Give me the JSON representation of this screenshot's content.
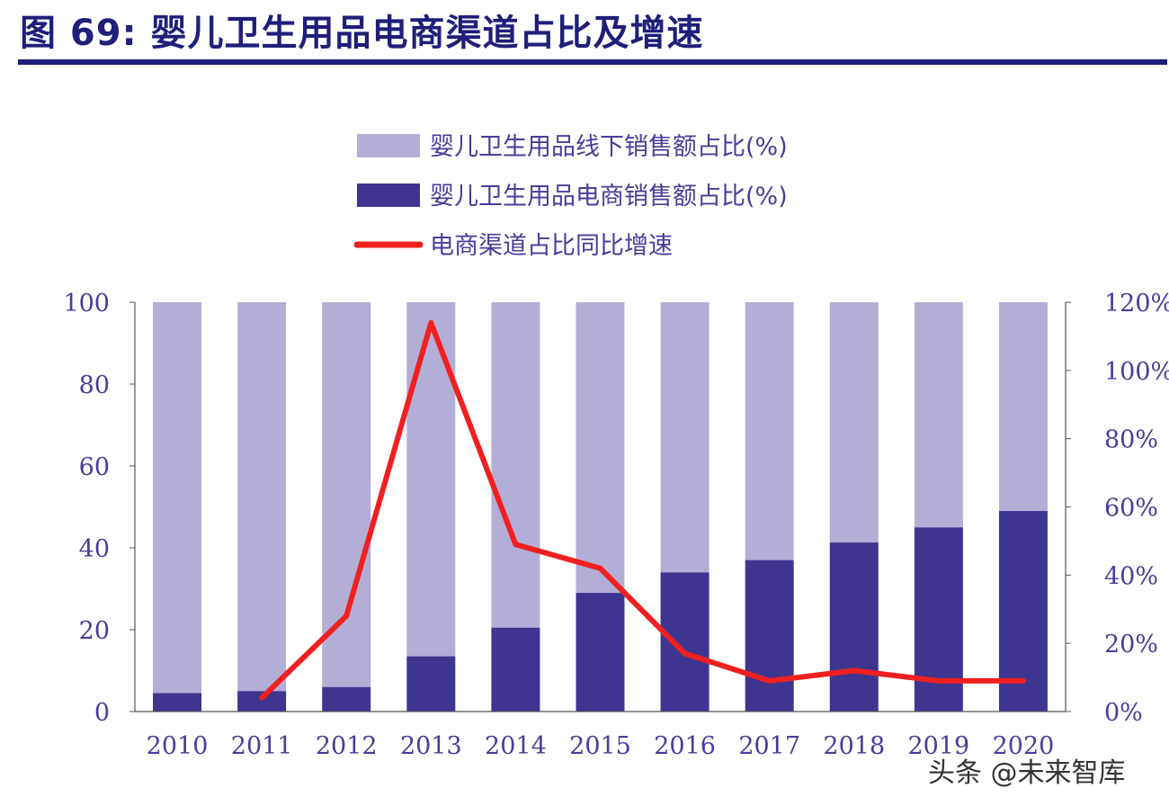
{
  "figure": {
    "title": "图 69: 婴儿卫生用品电商渠道占比及增速"
  },
  "watermark": "头条 @未来智库",
  "colors": {
    "offline": "#b3aed6",
    "online": "#3e3591",
    "growth": "#f02020",
    "text": "#4b3b9b",
    "title": "#1f1e7a"
  },
  "chart_data": {
    "type": "bar",
    "stacked": true,
    "categories": [
      "2010",
      "2011",
      "2012",
      "2013",
      "2014",
      "2015",
      "2016",
      "2017",
      "2018",
      "2019",
      "2020"
    ],
    "series": [
      {
        "name": "婴儿卫生用品线下销售额占比(%)",
        "kind": "bar",
        "axis": "left",
        "values": [
          95.5,
          95,
          94,
          86.5,
          79.5,
          71,
          66,
          63,
          58.7,
          55,
          51
        ]
      },
      {
        "name": "婴儿卫生用品电商销售额占比(%)",
        "kind": "bar",
        "axis": "left",
        "values": [
          4.5,
          5,
          6,
          13.5,
          20.5,
          29,
          34,
          37,
          41.3,
          45,
          49
        ]
      },
      {
        "name": "电商渠道占比同比增速",
        "kind": "line",
        "axis": "right",
        "values": [
          null,
          4,
          28,
          114,
          49,
          42,
          17,
          9,
          12,
          9,
          9
        ]
      }
    ],
    "yleft": {
      "ylim": [
        0,
        100
      ],
      "ticks": [
        "0",
        "20",
        "40",
        "60",
        "80",
        "100"
      ]
    },
    "yright": {
      "ylim": [
        0,
        120
      ],
      "ticks": [
        "0%",
        "20%",
        "40%",
        "60%",
        "80%",
        "100%",
        "120%"
      ]
    },
    "legend_position": "top"
  }
}
